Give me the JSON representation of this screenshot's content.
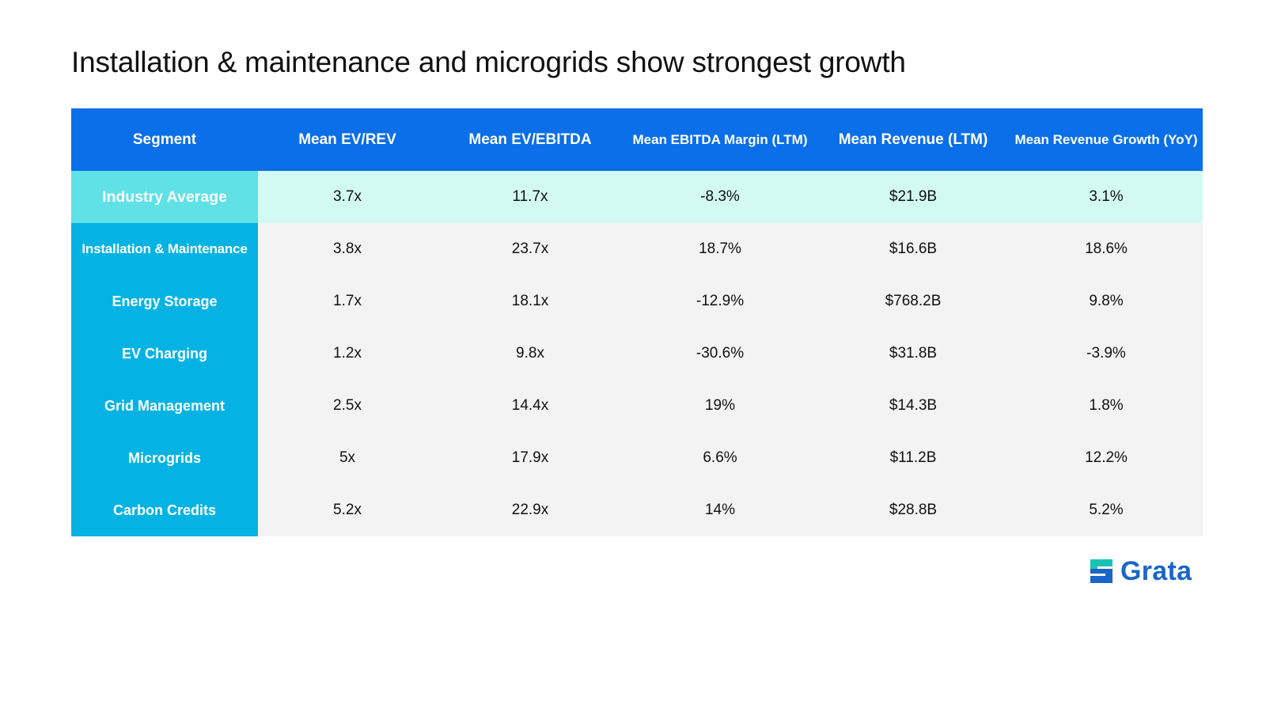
{
  "title": "Installation & maintenance and microgrids show strongest growth",
  "table": {
    "headers": [
      "Segment",
      "Mean EV/REV",
      "Mean EV/EBITDA",
      "Mean EBITDA Margin (LTM)",
      "Mean Revenue (LTM)",
      "Mean Revenue Growth (YoY)"
    ],
    "rows": [
      [
        "Industry Average",
        "3.7x",
        "11.7x",
        "-8.3%",
        "$21.9B",
        "3.1%"
      ],
      [
        "Installation & Maintenance",
        "3.8x",
        "23.7x",
        "18.7%",
        "$16.6B",
        "18.6%"
      ],
      [
        "Energy Storage",
        "1.7x",
        "18.1x",
        "-12.9%",
        "$768.2B",
        "9.8%"
      ],
      [
        "EV Charging",
        "1.2x",
        "9.8x",
        "-30.6%",
        "$31.8B",
        "-3.9%"
      ],
      [
        "Grid Management",
        "2.5x",
        "14.4x",
        "19%",
        "$14.3B",
        "1.8%"
      ],
      [
        "Microgrids",
        "5x",
        "17.9x",
        "6.6%",
        "$11.2B",
        "12.2%"
      ],
      [
        "Carbon Credits",
        "5.2x",
        "22.9x",
        "14%",
        "$28.8B",
        "5.2%"
      ]
    ]
  },
  "logo": {
    "text": "Grata",
    "icon": "grata-logo-icon"
  },
  "colors": {
    "header_bg": "#0a6fe8",
    "segment_bg": "#04b3e3",
    "average_segment_bg": "#5fe1e6",
    "average_row_bg": "#d2faf2",
    "row_bg": "#f3f3f3",
    "logo_blue": "#1a66c8",
    "logo_teal": "#19c3b4"
  }
}
